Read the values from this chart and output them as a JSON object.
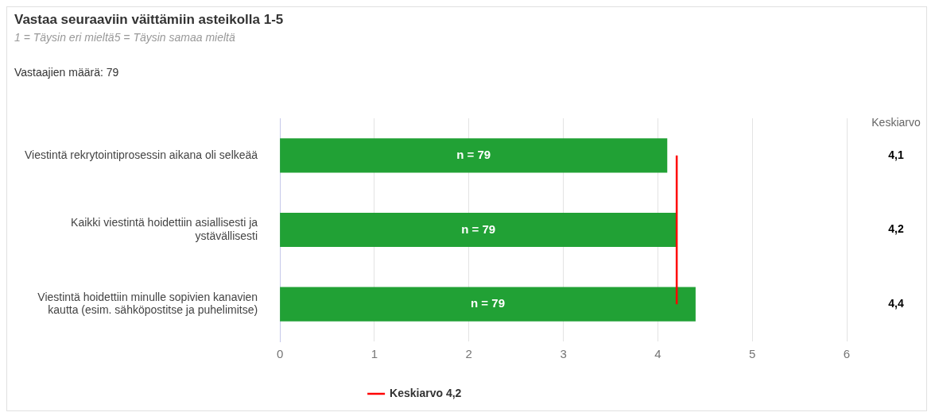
{
  "chart_data": {
    "type": "bar",
    "orientation": "horizontal",
    "title": "Vastaa seuraaviin väittämiin asteikolla 1-5",
    "subtitle": "1 = Täysin eri mieltä5 = Täysin samaa mieltä",
    "categories": [
      "Viestintä rekrytointiprosessin aikana oli selkeää",
      "Kaikki viestintä hoidettiin asiallisesti ja ystävällisesti",
      "Viestintä hoidettiin minulle sopivien kanavien kautta (esim. sähköpostitse ja puhelimitse)"
    ],
    "values": [
      4.1,
      4.2,
      4.4
    ],
    "color": "#21a135",
    "value_labels": [
      "4,1",
      "4,2",
      "4,4"
    ],
    "xlim": [
      0,
      6
    ],
    "xticks": [
      0,
      1,
      2,
      3,
      4,
      5,
      6
    ],
    "grid": "x",
    "ref_lines": [
      {
        "axis": "x",
        "value": 4.2,
        "label": "Keskiarvo 4,2",
        "color": "#ff0000"
      }
    ],
    "legend": "bottom",
    "annotations": [
      "Vastaajien määrä: 79",
      "Keskiarvo",
      "n = 79",
      "n = 79",
      "n = 79"
    ]
  }
}
